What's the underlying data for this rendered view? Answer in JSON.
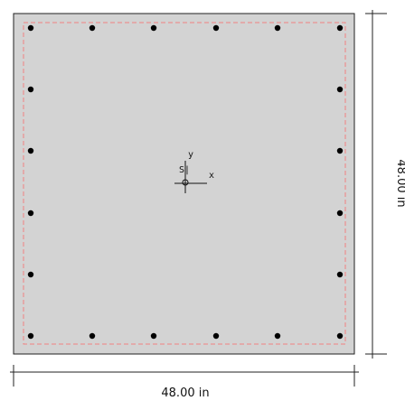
{
  "section": {
    "width_label": "48.00 in",
    "height_label": "48.00 in",
    "fill_color": "#d3d3d3",
    "outline_color": "#222222",
    "cover_line_color": "#f08080",
    "rebar_color": "#000000",
    "bar_count": 20
  },
  "axes": {
    "x_label": "x",
    "y_label": "y",
    "centroid_label": "S|"
  }
}
